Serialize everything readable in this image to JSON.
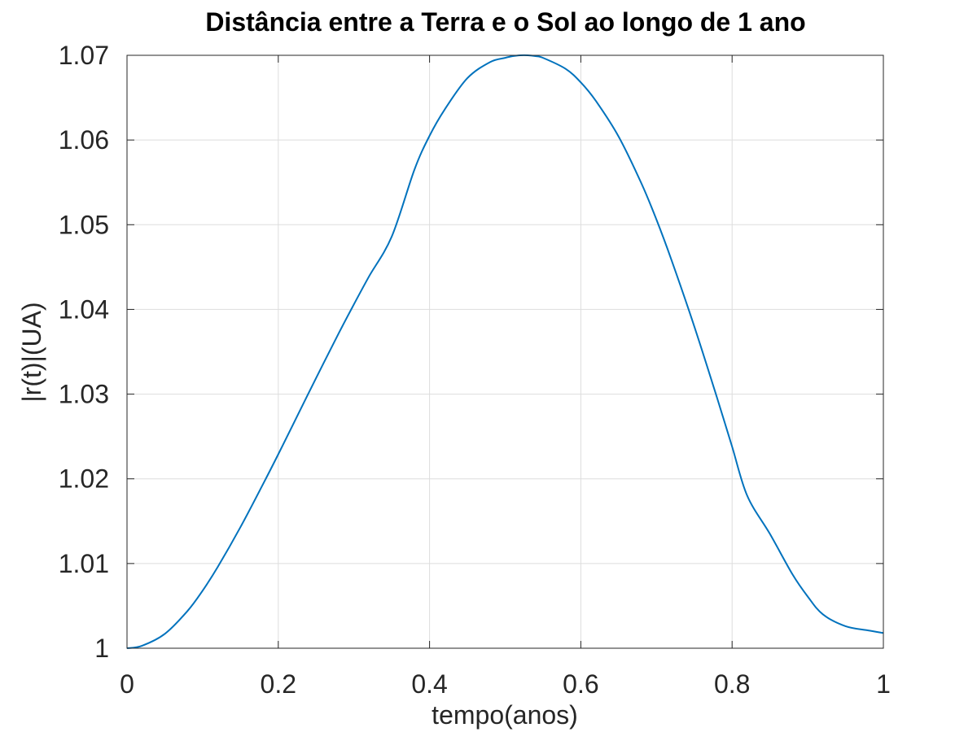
{
  "chart_data": {
    "type": "line",
    "title": "Distância entre a Terra e o Sol ao longo de 1 ano",
    "xlabel": "tempo(anos)",
    "ylabel": "|r(t)|(UA)",
    "xlim": [
      0,
      1
    ],
    "ylim": [
      1,
      1.07
    ],
    "xticks": [
      0,
      0.2,
      0.4,
      0.6,
      0.8,
      1
    ],
    "xtick_labels": [
      "0",
      "0.2",
      "0.4",
      "0.6",
      "0.8",
      "1"
    ],
    "yticks": [
      1,
      1.01,
      1.02,
      1.03,
      1.04,
      1.05,
      1.06,
      1.07
    ],
    "ytick_labels": [
      "1",
      "1.01",
      "1.02",
      "1.03",
      "1.04",
      "1.05",
      "1.06",
      "1.07"
    ],
    "grid": true,
    "legend": "none",
    "series": [
      {
        "color": "#0072bd",
        "x": [
          0,
          0.02,
          0.05,
          0.08,
          0.1,
          0.12,
          0.15,
          0.18,
          0.2,
          0.22,
          0.25,
          0.28,
          0.3,
          0.32,
          0.35,
          0.38,
          0.4,
          0.42,
          0.45,
          0.48,
          0.5,
          0.51,
          0.52,
          0.53,
          0.54,
          0.55,
          0.58,
          0.6,
          0.62,
          0.65,
          0.68,
          0.7,
          0.72,
          0.75,
          0.78,
          0.8,
          0.82,
          0.85,
          0.88,
          0.9,
          0.92,
          0.95,
          0.98,
          1.0
        ],
        "y": [
          1.0,
          1.0003,
          1.0017,
          1.0044,
          1.0068,
          1.0096,
          1.0143,
          1.0194,
          1.0229,
          1.0265,
          1.0319,
          1.0372,
          1.0406,
          1.0439,
          1.0486,
          1.0565,
          1.0605,
          1.0636,
          1.0673,
          1.0692,
          1.0697,
          1.0699,
          1.07,
          1.07,
          1.0699,
          1.0697,
          1.0684,
          1.0668,
          1.0646,
          1.0604,
          1.0549,
          1.0506,
          1.0458,
          1.038,
          1.0296,
          1.0238,
          1.018,
          1.0135,
          1.0087,
          1.0061,
          1.004,
          1.0026,
          1.0021,
          1.0018
        ]
      }
    ]
  }
}
